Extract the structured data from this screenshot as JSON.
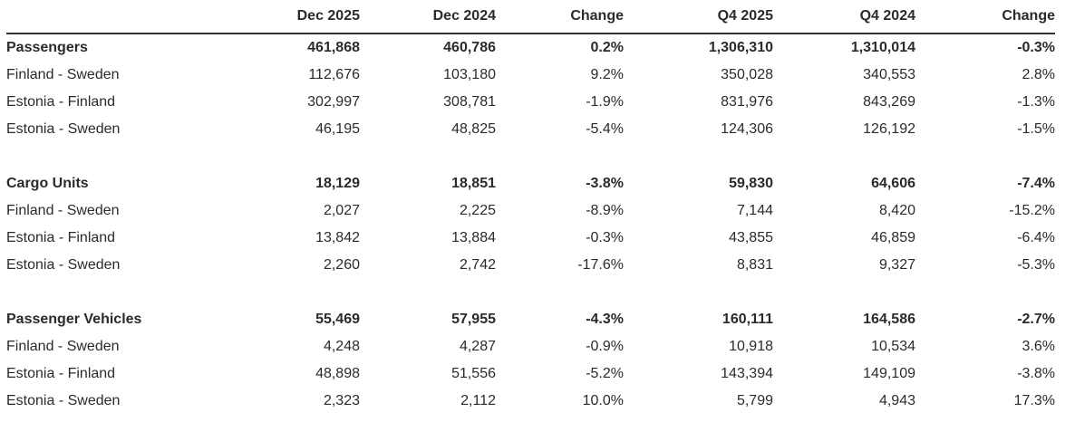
{
  "table": {
    "columns": [
      "",
      "Dec 2025",
      "Dec 2024",
      "Change",
      "Q4 2025",
      "Q4 2024",
      "Change"
    ],
    "sections": [
      {
        "total": {
          "label": "Passengers",
          "values": [
            "461,868",
            "460,786",
            "0.2%",
            "1,306,310",
            "1,310,014",
            "-0.3%"
          ]
        },
        "rows": [
          {
            "label": "Finland - Sweden",
            "values": [
              "112,676",
              "103,180",
              "9.2%",
              "350,028",
              "340,553",
              "2.8%"
            ]
          },
          {
            "label": "Estonia - Finland",
            "values": [
              "302,997",
              "308,781",
              "-1.9%",
              "831,976",
              "843,269",
              "-1.3%"
            ]
          },
          {
            "label": "Estonia - Sweden",
            "values": [
              "46,195",
              "48,825",
              "-5.4%",
              "124,306",
              "126,192",
              "-1.5%"
            ]
          }
        ]
      },
      {
        "total": {
          "label": "Cargo Units",
          "values": [
            "18,129",
            "18,851",
            "-3.8%",
            "59,830",
            "64,606",
            "-7.4%"
          ]
        },
        "rows": [
          {
            "label": "Finland - Sweden",
            "values": [
              "2,027",
              "2,225",
              "-8.9%",
              "7,144",
              "8,420",
              "-15.2%"
            ]
          },
          {
            "label": "Estonia - Finland",
            "values": [
              "13,842",
              "13,884",
              "-0.3%",
              "43,855",
              "46,859",
              "-6.4%"
            ]
          },
          {
            "label": "Estonia - Sweden",
            "values": [
              "2,260",
              "2,742",
              "-17.6%",
              "8,831",
              "9,327",
              "-5.3%"
            ]
          }
        ]
      },
      {
        "total": {
          "label": "Passenger Vehicles",
          "values": [
            "55,469",
            "57,955",
            "-4.3%",
            "160,111",
            "164,586",
            "-2.7%"
          ]
        },
        "rows": [
          {
            "label": "Finland - Sweden",
            "values": [
              "4,248",
              "4,287",
              "-0.9%",
              "10,918",
              "10,534",
              "3.6%"
            ]
          },
          {
            "label": "Estonia - Finland",
            "values": [
              "48,898",
              "51,556",
              "-5.2%",
              "143,394",
              "149,109",
              "-3.8%"
            ]
          },
          {
            "label": "Estonia - Sweden",
            "values": [
              "2,323",
              "2,112",
              "10.0%",
              "5,799",
              "4,943",
              "17.3%"
            ]
          }
        ]
      }
    ]
  }
}
